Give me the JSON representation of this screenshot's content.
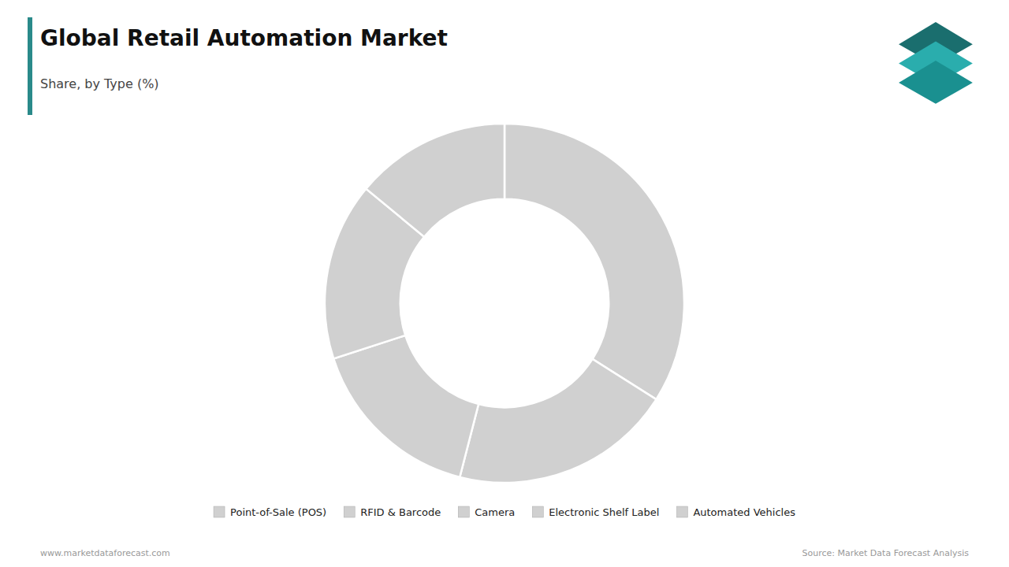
{
  "chart_data": {
    "type": "pie",
    "title": "Global Retail Automation Market",
    "subtitle": "Share, by Type (%)",
    "categories": [
      "Point-of-Sale (POS)",
      "RFID & Barcode",
      "Camera",
      "Electronic Shelf Label",
      "Automated Vehicles"
    ],
    "values": [
      34,
      20,
      16,
      16,
      14
    ],
    "colors": [
      "#d0d0d0",
      "#d0d0d0",
      "#d0d0d0",
      "#d0d0d0",
      "#d0d0d0"
    ],
    "legend": "bottom",
    "annotations": [
      "www.marketdataforecast.com",
      "Source: Market Data Forecast Analysis"
    ]
  }
}
